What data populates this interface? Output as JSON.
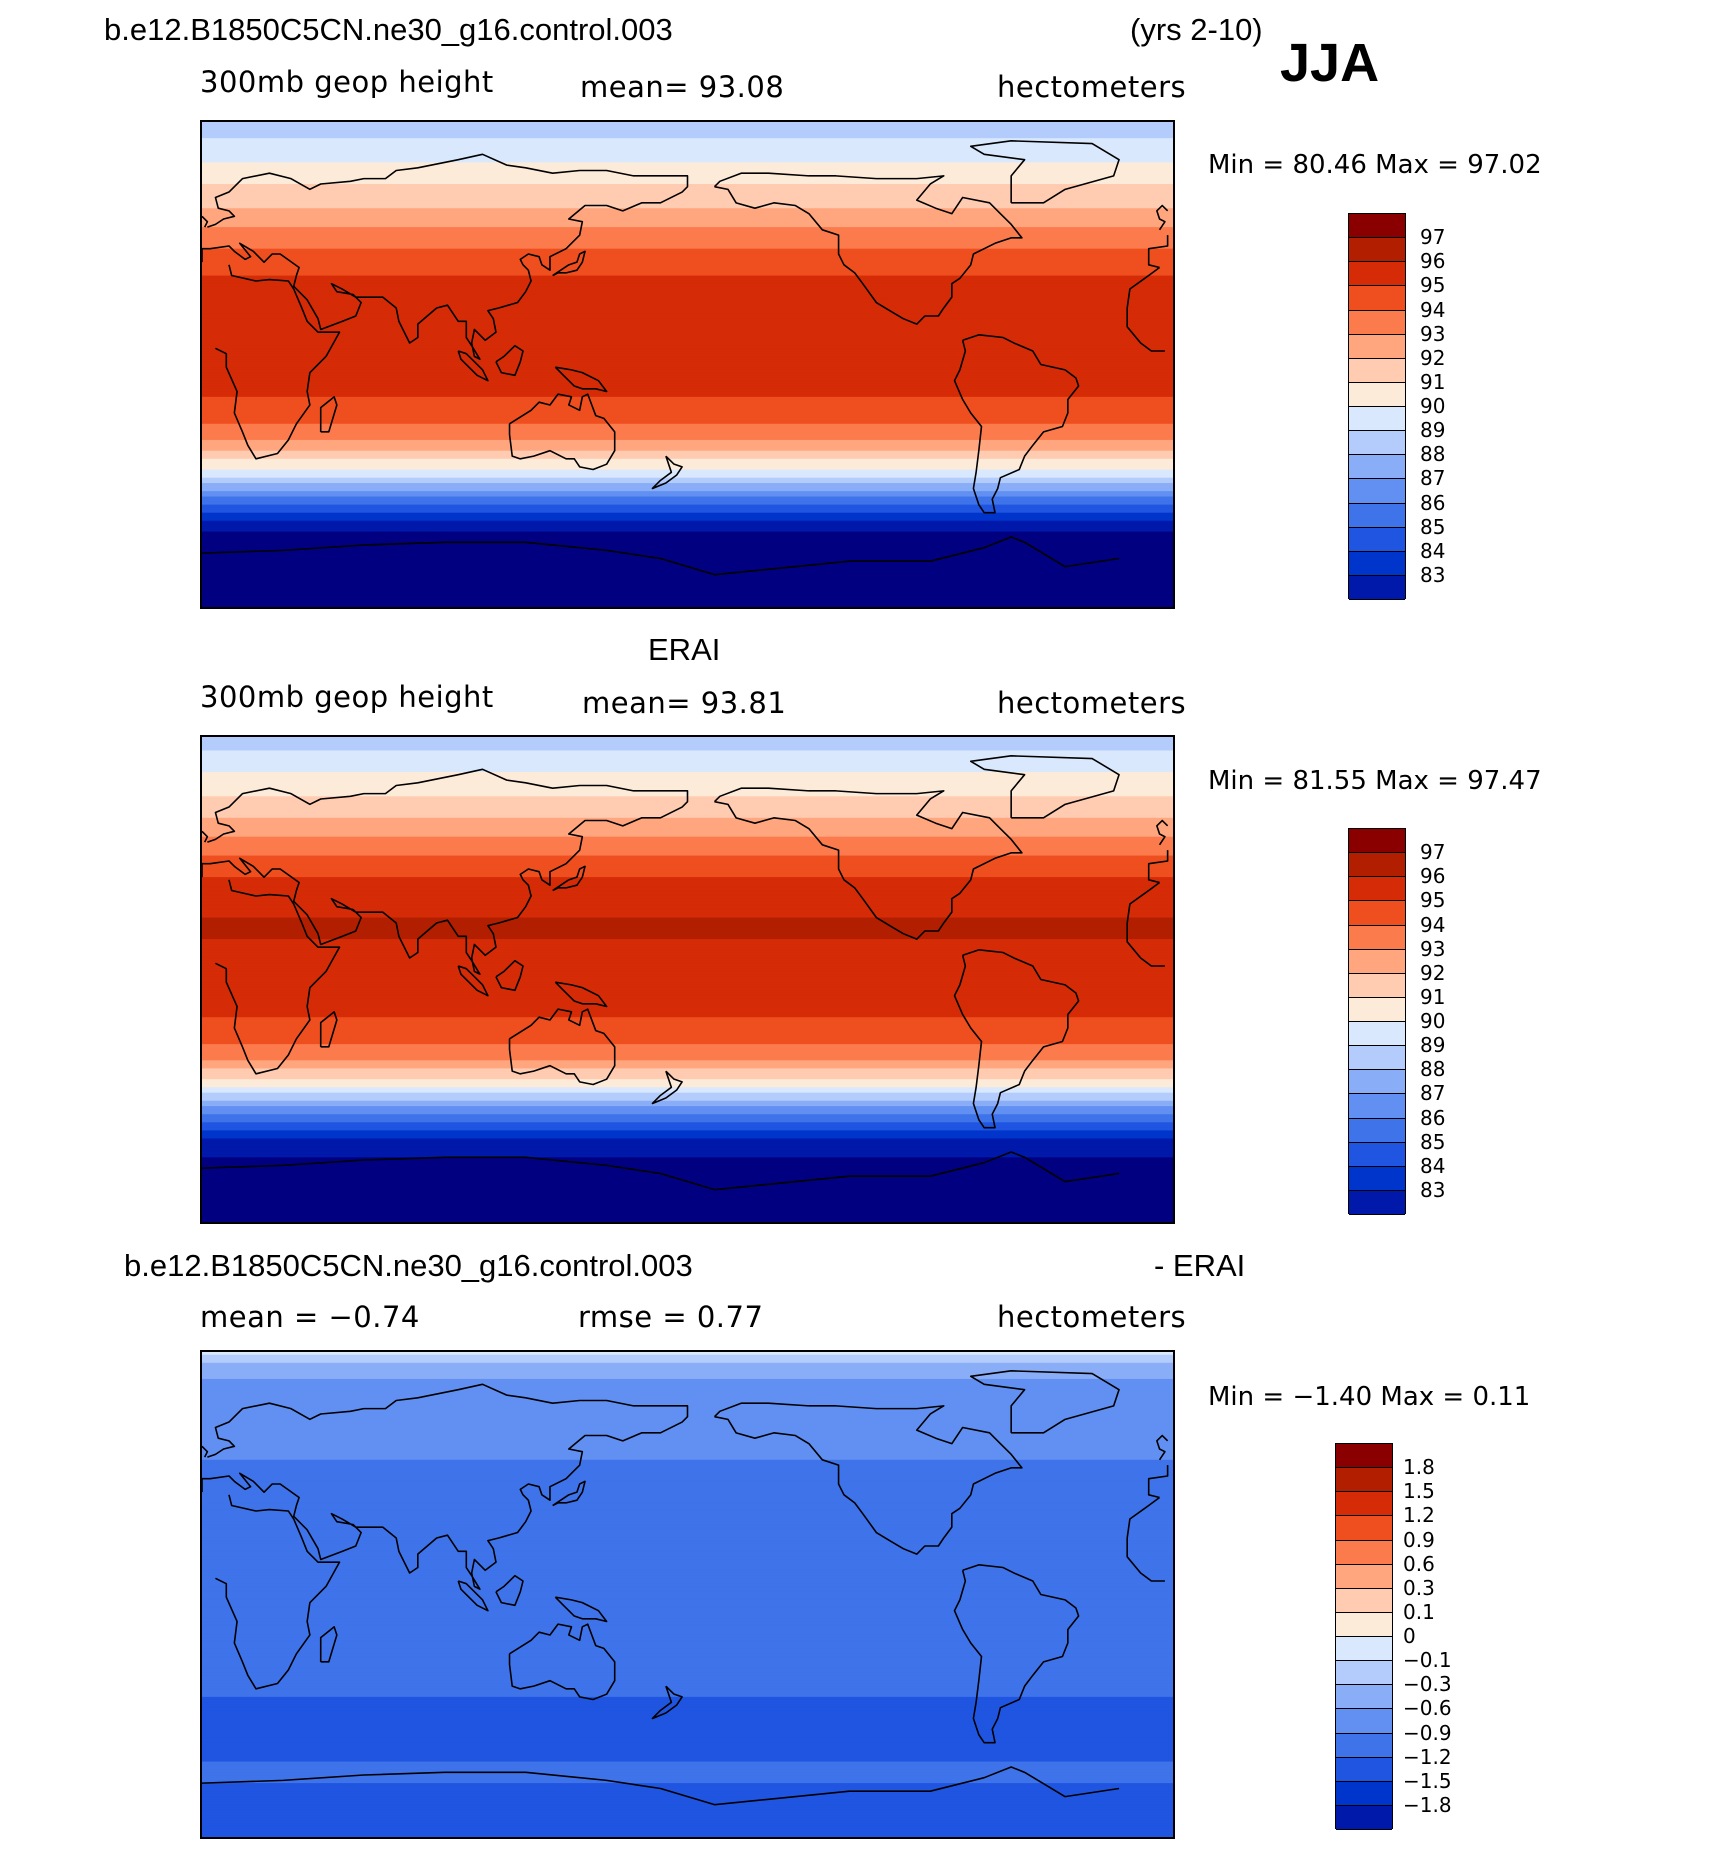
{
  "season": "JJA",
  "panels": [
    {
      "title": "b.e12.B1850C5CN.ne30_g16.control.003",
      "title_right": "(yrs 2-10)",
      "left_label": "300mb geop height",
      "center_label": "mean=  93.08",
      "units": "hectometers",
      "minmax": "Min =   80.46 Max =   97.02",
      "legend_labels": [
        "97",
        "96",
        "95",
        "94",
        "93",
        "92",
        "91",
        "90",
        "89",
        "88",
        "87",
        "86",
        "85",
        "84",
        "83"
      ],
      "chart_data": {
        "type": "heatmap",
        "variable": "300mb geopotential height (model)",
        "units": "hectometers",
        "mean": 93.08,
        "min": 80.46,
        "max": 97.02,
        "lat_profile": [
          [
            90,
            89.2
          ],
          [
            80,
            90.5
          ],
          [
            70,
            91.6
          ],
          [
            60,
            92.8
          ],
          [
            50,
            94.1
          ],
          [
            40,
            95.4
          ],
          [
            30,
            96.3
          ],
          [
            15,
            96.6
          ],
          [
            0,
            96.5
          ],
          [
            -10,
            96.2
          ],
          [
            -20,
            95.4
          ],
          [
            -30,
            93.7
          ],
          [
            -40,
            90.6
          ],
          [
            -50,
            86.8
          ],
          [
            -60,
            83.2
          ],
          [
            -70,
            82.2
          ],
          [
            -90,
            81.6
          ]
        ]
      }
    },
    {
      "title": "ERAI",
      "left_label": "300mb geop height",
      "center_label": "mean=  93.81",
      "units": "hectometers",
      "minmax": "Min =   81.55 Max =   97.47",
      "legend_labels": [
        "97",
        "96",
        "95",
        "94",
        "93",
        "92",
        "91",
        "90",
        "89",
        "88",
        "87",
        "86",
        "85",
        "84",
        "83"
      ],
      "chart_data": {
        "type": "heatmap",
        "variable": "300mb geopotential height (ERAI)",
        "units": "hectometers",
        "mean": 93.81,
        "min": 81.55,
        "max": 97.47,
        "lat_profile": [
          [
            90,
            89.5
          ],
          [
            80,
            90.6
          ],
          [
            70,
            91.8
          ],
          [
            60,
            93.0
          ],
          [
            50,
            94.4
          ],
          [
            40,
            95.8
          ],
          [
            30,
            96.8
          ],
          [
            20,
            97.1
          ],
          [
            10,
            96.9
          ],
          [
            0,
            96.6
          ],
          [
            -10,
            96.3
          ],
          [
            -20,
            95.6
          ],
          [
            -30,
            94.0
          ],
          [
            -40,
            91.0
          ],
          [
            -50,
            87.0
          ],
          [
            -60,
            83.6
          ],
          [
            -70,
            82.6
          ],
          [
            -90,
            82.0
          ]
        ]
      }
    },
    {
      "title": "b.e12.B1850C5CN.ne30_g16.control.003",
      "title_right": "- ERAI",
      "left_label": "mean =  −0.74",
      "center_label": "rmse =   0.77",
      "units": "hectometers",
      "minmax": "Min =  −1.40 Max =   0.11",
      "legend_labels": [
        "1.8",
        "1.5",
        "1.2",
        "0.9",
        "0.6",
        "0.3",
        "0.1",
        "0",
        "−0.1",
        "−0.3",
        "−0.6",
        "−0.9",
        "−1.2",
        "−1.5",
        "−1.8"
      ],
      "chart_data": {
        "type": "heatmap",
        "variable": "difference model - ERAI",
        "units": "hectometers",
        "mean": -0.74,
        "rmse": 0.77,
        "min": -1.4,
        "max": 0.11,
        "lat_profile": [
          [
            90,
            0.05
          ],
          [
            80,
            -0.3
          ],
          [
            70,
            -0.55
          ],
          [
            60,
            -0.5
          ],
          [
            50,
            -0.6
          ],
          [
            40,
            -0.7
          ],
          [
            30,
            -0.7
          ],
          [
            15,
            -0.65
          ],
          [
            0,
            -0.75
          ],
          [
            -15,
            -0.8
          ],
          [
            -30,
            -0.85
          ],
          [
            -45,
            -0.95
          ],
          [
            -55,
            -1.0
          ],
          [
            -65,
            -0.85
          ],
          [
            -75,
            -0.95
          ],
          [
            -90,
            -0.9
          ]
        ]
      }
    }
  ],
  "colors": {
    "abs_scale": [
      "#000080",
      "#0019aa",
      "#0035cb",
      "#1f55e0",
      "#3f73ea",
      "#6190f2",
      "#89adf7",
      "#b3ccfb",
      "#d9e8fd",
      "#fdebd9",
      "#ffcbb1",
      "#ffa67e",
      "#fc7b4d",
      "#ef4f1f",
      "#d52b06",
      "#b21f00",
      "#8a0000"
    ],
    "diff_scale": [
      "#000080",
      "#0019aa",
      "#0035cb",
      "#1f55e0",
      "#3f73ea",
      "#6190f2",
      "#89adf7",
      "#b3ccfb",
      "#d9e8fd",
      "#fdebd9",
      "#ffcbb1",
      "#ffa67e",
      "#fc7b4d",
      "#ef4f1f",
      "#d52b06",
      "#b21f00",
      "#8a0000"
    ]
  }
}
